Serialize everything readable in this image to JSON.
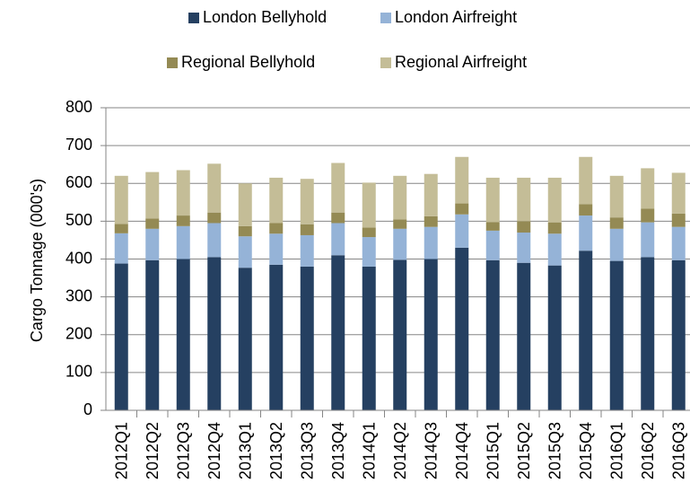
{
  "chart_data": {
    "type": "stacked-bar",
    "y_label": "Cargo Tonnage (000's)",
    "categories": [
      "2012Q1",
      "2012Q2",
      "2012Q3",
      "2012Q4",
      "2013Q1",
      "2013Q2",
      "2013Q3",
      "2013Q4",
      "2014Q1",
      "2014Q2",
      "2014Q3",
      "2014Q4",
      "2015Q1",
      "2015Q2",
      "2015Q3",
      "2015Q4",
      "2016Q1",
      "2016Q2",
      "2016Q3"
    ],
    "series": [
      {
        "name": "London Bellyhold",
        "color": "#254061",
        "values": [
          388,
          397,
          400,
          405,
          377,
          385,
          380,
          410,
          380,
          398,
          400,
          430,
          397,
          390,
          383,
          422,
          395,
          405,
          397
        ]
      },
      {
        "name": "London Airfreight",
        "color": "#95b3d7",
        "values": [
          80,
          83,
          87,
          90,
          83,
          82,
          83,
          85,
          78,
          82,
          85,
          88,
          78,
          80,
          84,
          93,
          85,
          92,
          88
        ]
      },
      {
        "name": "Regional Bellyhold",
        "color": "#948a54",
        "values": [
          25,
          27,
          28,
          28,
          27,
          28,
          29,
          28,
          25,
          25,
          28,
          29,
          23,
          30,
          30,
          30,
          30,
          36,
          35
        ]
      },
      {
        "name": "Regional Airfreight",
        "color": "#c4bd97",
        "values": [
          127,
          123,
          120,
          129,
          113,
          120,
          120,
          131,
          119,
          115,
          112,
          123,
          117,
          115,
          118,
          125,
          110,
          107,
          108
        ]
      }
    ],
    "ylim": [
      0,
      800
    ],
    "yticks": [
      0,
      100,
      200,
      300,
      400,
      500,
      600,
      700,
      800
    ],
    "grid": true
  }
}
